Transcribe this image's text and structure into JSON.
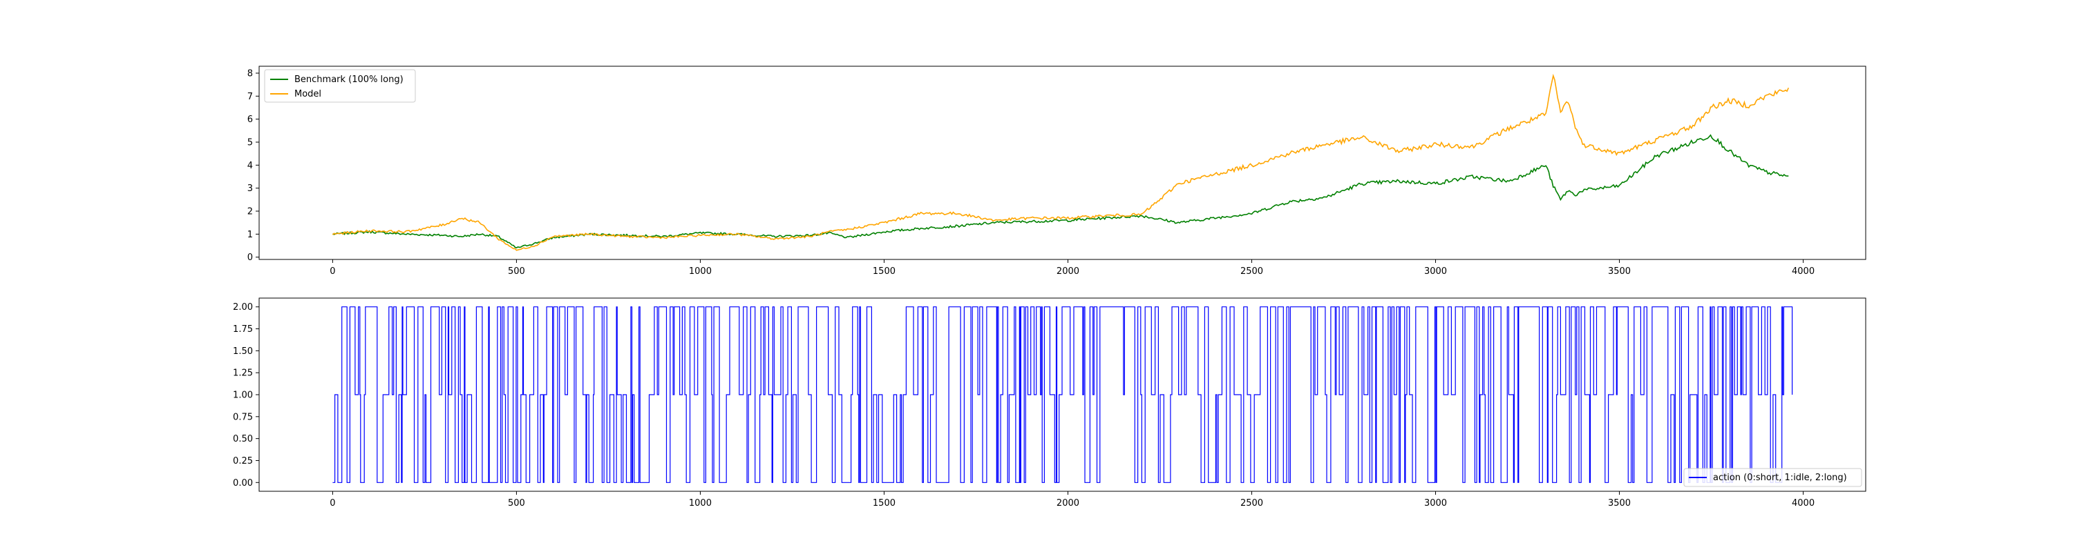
{
  "chart_data": [
    {
      "type": "line",
      "title": "",
      "xlabel": "",
      "ylabel": "",
      "xlim": [
        -200,
        4170
      ],
      "ylim": [
        -0.1,
        8.3
      ],
      "xticks": [
        0,
        500,
        1000,
        1500,
        2000,
        2500,
        3000,
        3500,
        4000
      ],
      "yticks": [
        0,
        1,
        2,
        3,
        4,
        5,
        6,
        7,
        8
      ],
      "grid": false,
      "legend_position": "upper-left",
      "x": [
        0,
        100,
        200,
        300,
        350,
        400,
        450,
        500,
        550,
        600,
        700,
        800,
        900,
        1000,
        1100,
        1200,
        1300,
        1350,
        1400,
        1500,
        1600,
        1700,
        1800,
        1900,
        2000,
        2100,
        2200,
        2250,
        2300,
        2400,
        2500,
        2600,
        2700,
        2800,
        2900,
        3000,
        3100,
        3200,
        3300,
        3320,
        3340,
        3360,
        3380,
        3400,
        3500,
        3600,
        3700,
        3750,
        3800,
        3850,
        3900,
        3960
      ],
      "series": [
        {
          "name": "Benchmark (100% long)",
          "color": "#008000",
          "values": [
            1.0,
            1.1,
            1.0,
            0.95,
            0.9,
            1.0,
            0.9,
            0.4,
            0.6,
            0.85,
            1.0,
            0.95,
            0.9,
            1.05,
            1.0,
            0.9,
            0.95,
            1.05,
            0.85,
            1.1,
            1.25,
            1.35,
            1.5,
            1.55,
            1.6,
            1.7,
            1.8,
            1.65,
            1.5,
            1.7,
            1.9,
            2.4,
            2.6,
            3.2,
            3.3,
            3.2,
            3.5,
            3.3,
            4.0,
            3.1,
            2.5,
            2.9,
            2.7,
            2.9,
            3.1,
            4.4,
            5.0,
            5.3,
            4.6,
            4.0,
            3.7,
            3.5
          ]
        },
        {
          "name": "Model",
          "color": "#FFA500",
          "values": [
            1.0,
            1.15,
            1.1,
            1.4,
            1.7,
            1.5,
            0.8,
            0.3,
            0.5,
            0.9,
            1.0,
            0.9,
            0.85,
            0.95,
            1.0,
            0.8,
            0.9,
            1.1,
            1.2,
            1.5,
            1.9,
            1.9,
            1.6,
            1.7,
            1.7,
            1.8,
            1.85,
            2.5,
            3.2,
            3.6,
            4.0,
            4.5,
            4.9,
            5.2,
            4.6,
            4.9,
            4.8,
            5.6,
            6.2,
            7.9,
            6.3,
            6.8,
            5.7,
            4.9,
            4.5,
            5.1,
            5.7,
            6.5,
            6.8,
            6.6,
            7.0,
            7.3
          ]
        }
      ]
    },
    {
      "type": "line",
      "title": "",
      "xlabel": "",
      "ylabel": "",
      "xlim": [
        -200,
        4170
      ],
      "ylim": [
        -0.1,
        2.1
      ],
      "xticks": [
        0,
        500,
        1000,
        1500,
        2000,
        2500,
        3000,
        3500,
        4000
      ],
      "yticks": [
        0.0,
        0.25,
        0.5,
        0.75,
        1.0,
        1.25,
        1.5,
        1.75,
        2.0
      ],
      "ytick_labels": [
        "0.00",
        "0.25",
        "0.50",
        "0.75",
        "1.00",
        "1.25",
        "1.50",
        "1.75",
        "2.00"
      ],
      "grid": false,
      "legend_position": "lower-right",
      "series": [
        {
          "name": "action (0:short, 1:idle, 2:long)",
          "color": "#0000FF",
          "x_range": [
            0,
            3970
          ],
          "allowed_values": [
            0,
            1,
            2
          ]
        }
      ]
    }
  ],
  "axes": {
    "top": {
      "xtick_labels": [
        "0",
        "500",
        "1000",
        "1500",
        "2000",
        "2500",
        "3000",
        "3500",
        "4000"
      ],
      "ytick_labels": [
        "0",
        "1",
        "2",
        "3",
        "4",
        "5",
        "6",
        "7",
        "8"
      ],
      "legend": [
        "Benchmark (100% long)",
        "Model"
      ]
    },
    "bottom": {
      "xtick_labels": [
        "0",
        "500",
        "1000",
        "1500",
        "2000",
        "2500",
        "3000",
        "3500",
        "4000"
      ],
      "ytick_labels": [
        "0.00",
        "0.25",
        "0.50",
        "0.75",
        "1.00",
        "1.25",
        "1.50",
        "1.75",
        "2.00"
      ],
      "legend": [
        "action (0:short, 1:idle, 2:long)"
      ]
    }
  }
}
